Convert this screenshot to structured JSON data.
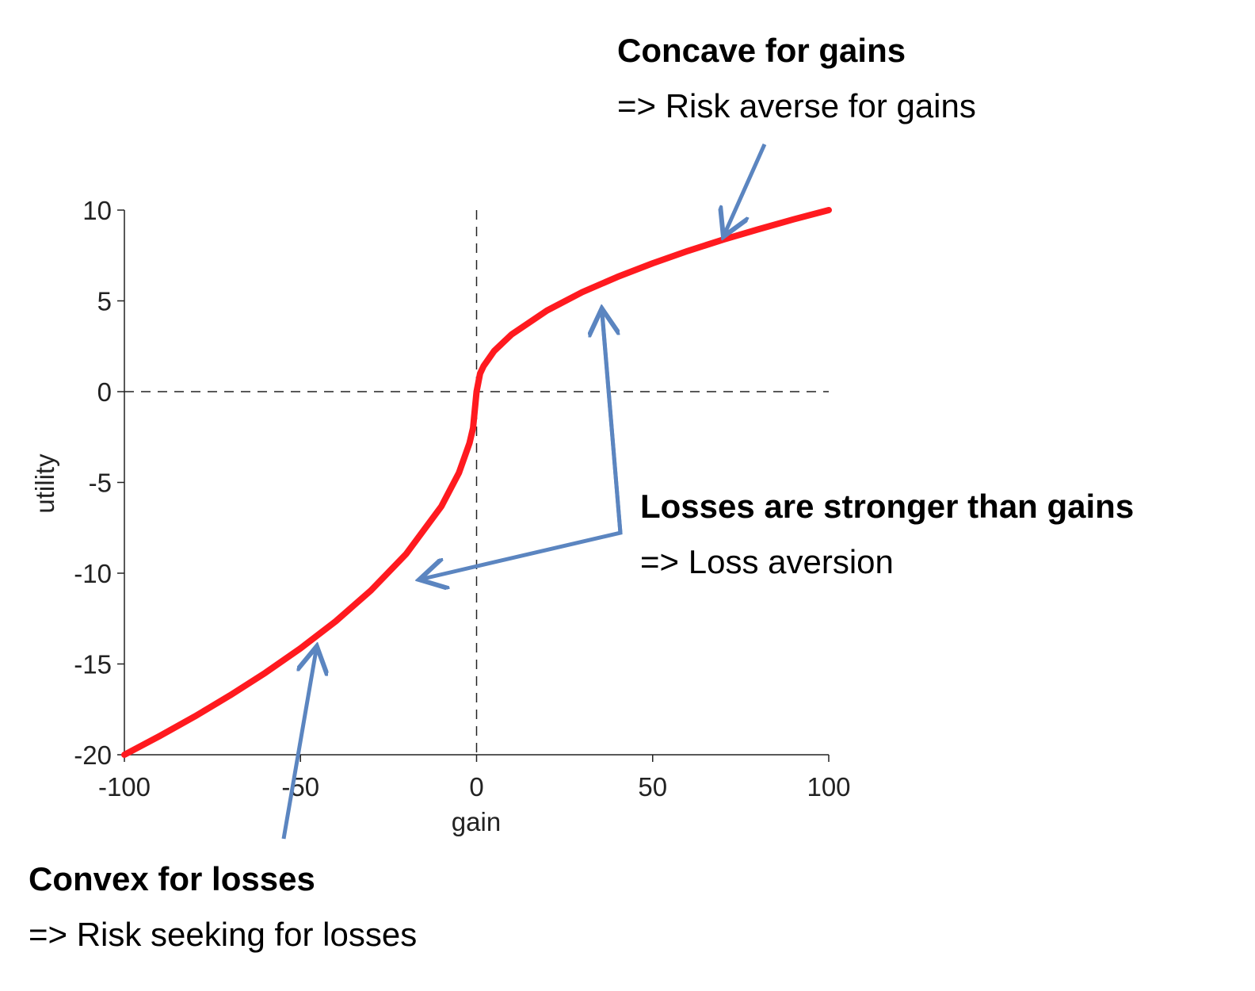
{
  "chart_data": {
    "type": "line",
    "x_label": "gain",
    "y_label": "utility",
    "x": [
      -100,
      -90,
      -80,
      -70,
      -60,
      -50,
      -40,
      -30,
      -20,
      -10,
      -5,
      -2,
      -1,
      0,
      1,
      2,
      5,
      10,
      20,
      30,
      40,
      50,
      60,
      70,
      80,
      90,
      100
    ],
    "values": [
      -20,
      -18.97,
      -17.89,
      -16.73,
      -15.49,
      -14.14,
      -12.65,
      -10.95,
      -8.94,
      -6.32,
      -4.47,
      -2.83,
      -2,
      0,
      1,
      1.41,
      2.24,
      3.16,
      4.47,
      5.48,
      6.32,
      7.07,
      7.75,
      8.37,
      8.94,
      9.49,
      10
    ],
    "color": "#ff1a1f",
    "xlim": [
      -100,
      100
    ],
    "xticks": [
      -100,
      -50,
      0,
      50,
      100
    ],
    "ylim": [
      -20,
      10
    ],
    "yticks": [
      -20,
      -15,
      -10,
      -5,
      0,
      5,
      10
    ],
    "zero_lines": true,
    "annotations": [
      {
        "title": "Concave for gains",
        "text": "=> Risk averse for gains"
      },
      {
        "title": "Losses are stronger than gains",
        "text": "=> Loss aversion"
      },
      {
        "title": "Convex for losses",
        "text": "=> Risk seeking for losses"
      }
    ]
  }
}
